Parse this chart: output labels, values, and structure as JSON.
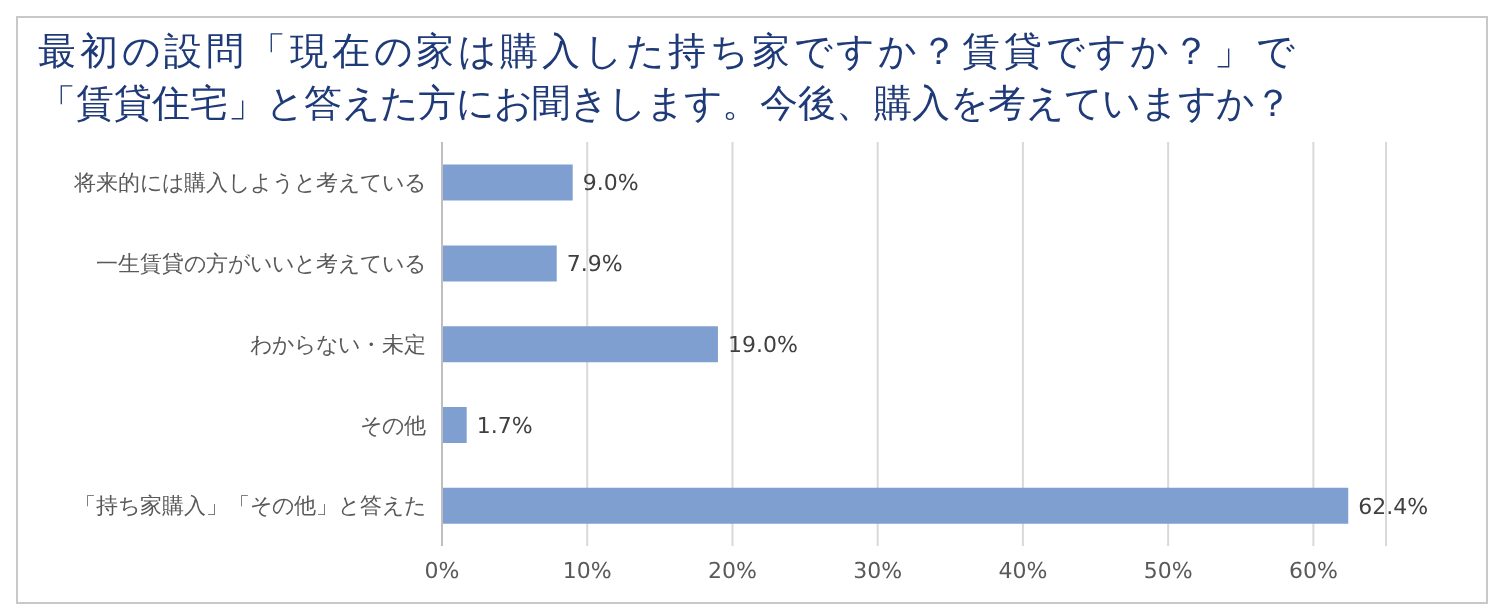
{
  "chart_data": {
    "type": "bar",
    "orientation": "horizontal",
    "title": "最初の設問「現在の家は購入した持ち家ですか？賃貸ですか？」で「賃貸住宅」と答えた方にお聞きします。今後、購入を考えていますか？",
    "categories": [
      "将来的には購入しようと考えている",
      "一生賃貸の方がいいと考えている",
      "わからない・未定",
      "その他",
      "「持ち家購入」「その他」と答えた"
    ],
    "values": [
      9.0,
      7.9,
      19.0,
      1.7,
      62.4
    ],
    "value_labels": [
      "9.0%",
      "7.9%",
      "19.0%",
      "1.7%",
      "62.4%"
    ],
    "color": "#7f9fd0",
    "xlim": [
      0,
      65
    ],
    "xticks": [
      {
        "value": 0,
        "label": "0%"
      },
      {
        "value": 10,
        "label": "10%"
      },
      {
        "value": 20,
        "label": "20%"
      },
      {
        "value": 30,
        "label": "30%"
      },
      {
        "value": 40,
        "label": "40%"
      },
      {
        "value": 50,
        "label": "50%"
      },
      {
        "value": 60,
        "label": "60%"
      }
    ],
    "grid": "x"
  }
}
